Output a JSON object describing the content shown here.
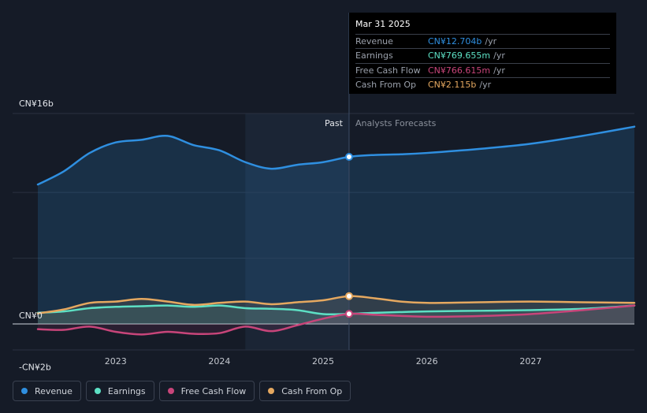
{
  "colors": {
    "background": "#151b27",
    "revenue": "#2f8fe0",
    "earnings": "#5de0c4",
    "free_cash_flow": "#c8457a",
    "cash_from_op": "#e5a860",
    "past_shade": "#1b2535"
  },
  "chart_data": {
    "type": "line",
    "title": "",
    "xlabel": "",
    "ylabel": "",
    "x_range": [
      2022.25,
      2028.0
    ],
    "ylim": [
      -2.6,
      16.0
    ],
    "y_ticks": [
      {
        "value": 16,
        "label": "CN¥16b"
      },
      {
        "value": 0,
        "label": "CN¥0"
      },
      {
        "value": -2,
        "label": "-CN¥2b"
      }
    ],
    "x_ticks": [
      {
        "value": 2023,
        "label": "2023"
      },
      {
        "value": 2024,
        "label": "2024"
      },
      {
        "value": 2025,
        "label": "2025"
      },
      {
        "value": 2026,
        "label": "2026"
      },
      {
        "value": 2027,
        "label": "2027"
      }
    ],
    "divider_x": 2025.25,
    "past_label": "Past",
    "forecast_label": "Analysts Forecasts",
    "shade_start_x": 2024.25,
    "series": [
      {
        "name": "Revenue",
        "color": "#2f8fe0",
        "x": [
          2022.25,
          2022.5,
          2022.75,
          2023.0,
          2023.25,
          2023.5,
          2023.75,
          2024.0,
          2024.25,
          2024.5,
          2024.75,
          2025.0,
          2025.25,
          2025.5,
          2025.75,
          2026.0,
          2026.5,
          2027.0,
          2027.5,
          2028.0
        ],
        "values": [
          10.6,
          11.6,
          13.0,
          13.8,
          14.0,
          14.3,
          13.6,
          13.2,
          12.3,
          11.8,
          12.1,
          12.3,
          12.704,
          12.85,
          12.9,
          13.0,
          13.3,
          13.7,
          14.3,
          15.0
        ]
      },
      {
        "name": "Earnings",
        "color": "#5de0c4",
        "x": [
          2022.25,
          2022.5,
          2022.75,
          2023.0,
          2023.25,
          2023.5,
          2023.75,
          2024.0,
          2024.25,
          2024.5,
          2024.75,
          2025.0,
          2025.25,
          2025.5,
          2026.0,
          2026.5,
          2027.0,
          2027.5,
          2028.0
        ],
        "values": [
          0.85,
          0.95,
          1.2,
          1.3,
          1.35,
          1.4,
          1.3,
          1.4,
          1.2,
          1.15,
          1.05,
          0.75,
          0.77,
          0.85,
          0.95,
          1.0,
          1.05,
          1.15,
          1.4
        ]
      },
      {
        "name": "Free Cash Flow",
        "color": "#c8457a",
        "x": [
          2022.25,
          2022.5,
          2022.75,
          2023.0,
          2023.25,
          2023.5,
          2023.75,
          2024.0,
          2024.25,
          2024.5,
          2024.75,
          2025.0,
          2025.25,
          2025.5,
          2026.0,
          2026.5,
          2027.0,
          2027.5,
          2028.0
        ],
        "values": [
          -0.4,
          -0.45,
          -0.2,
          -0.6,
          -0.8,
          -0.6,
          -0.75,
          -0.7,
          -0.2,
          -0.55,
          -0.1,
          0.4,
          0.767,
          0.7,
          0.55,
          0.6,
          0.75,
          1.05,
          1.4
        ]
      },
      {
        "name": "Cash From Op",
        "color": "#e5a860",
        "x": [
          2022.25,
          2022.5,
          2022.75,
          2023.0,
          2023.25,
          2023.5,
          2023.75,
          2024.0,
          2024.25,
          2024.5,
          2024.75,
          2025.0,
          2025.25,
          2025.5,
          2025.75,
          2026.0,
          2026.5,
          2027.0,
          2027.5,
          2028.0
        ],
        "values": [
          0.8,
          1.1,
          1.6,
          1.7,
          1.9,
          1.7,
          1.45,
          1.6,
          1.7,
          1.5,
          1.65,
          1.8,
          2.115,
          1.95,
          1.7,
          1.6,
          1.65,
          1.7,
          1.65,
          1.6
        ]
      }
    ],
    "markers": [
      {
        "series": "Revenue",
        "x": 2025.25,
        "y": 12.704
      },
      {
        "series": "Cash From Op",
        "x": 2025.25,
        "y": 2.115
      },
      {
        "series": "Free Cash Flow",
        "x": 2025.25,
        "y": 0.767
      }
    ]
  },
  "tooltip": {
    "date": "Mar 31 2025",
    "rows": [
      {
        "label": "Revenue",
        "value": "CN¥12.704b",
        "unit": "/yr",
        "color": "#2f8fe0"
      },
      {
        "label": "Earnings",
        "value": "CN¥769.655m",
        "unit": "/yr",
        "color": "#5de0c4"
      },
      {
        "label": "Free Cash Flow",
        "value": "CN¥766.615m",
        "unit": "/yr",
        "color": "#c8457a"
      },
      {
        "label": "Cash From Op",
        "value": "CN¥2.115b",
        "unit": "/yr",
        "color": "#e5a860"
      }
    ]
  },
  "legend": {
    "items": [
      {
        "label": "Revenue",
        "color": "#2f8fe0"
      },
      {
        "label": "Earnings",
        "color": "#5de0c4"
      },
      {
        "label": "Free Cash Flow",
        "color": "#c8457a"
      },
      {
        "label": "Cash From Op",
        "color": "#e5a860"
      }
    ]
  }
}
